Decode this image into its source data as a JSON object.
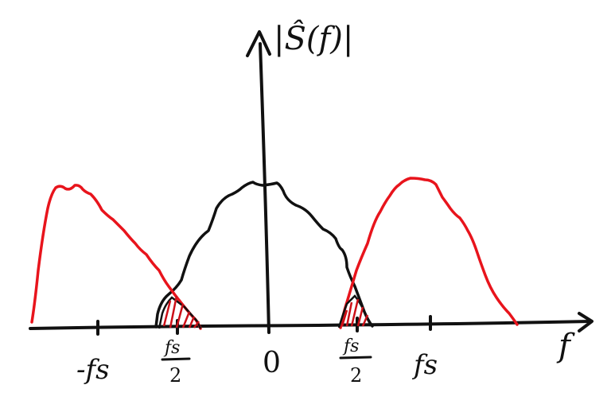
{
  "diagram": {
    "y_axis_label": "|Ŝ(f)|",
    "x_axis_label": "f",
    "tick_labels": {
      "neg_fs": "-fs",
      "neg_half_num": "fs",
      "neg_half_den": "2",
      "zero": "0",
      "pos_half_num": "fs",
      "pos_half_den": "2",
      "pos_fs": "fs"
    },
    "colors": {
      "baseband": "#111111",
      "alias": "#e8141c",
      "axis": "#111111"
    }
  }
}
